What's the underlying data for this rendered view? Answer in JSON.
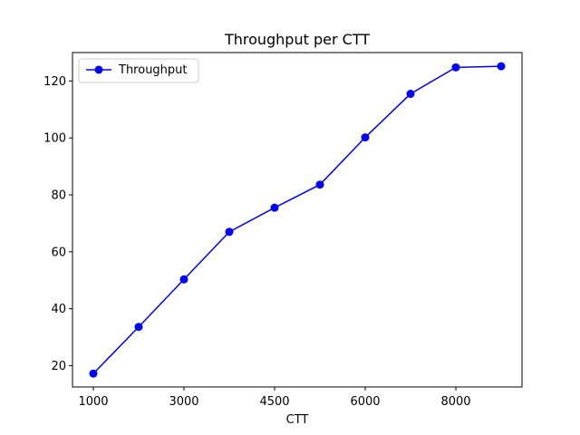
{
  "chart_data": {
    "type": "line",
    "title": "Throughput per CTT",
    "xlabel": "CTT",
    "ylabel": "",
    "x_tick_labels": [
      "1000",
      "3000",
      "4500",
      "6000",
      "8000"
    ],
    "y_ticks": [
      20,
      40,
      60,
      80,
      100,
      120
    ],
    "ylim": [
      12.5,
      130
    ],
    "legend_position": "top-left",
    "grid": false,
    "series": [
      {
        "name": "Throughput",
        "color": "#0000ff",
        "marker": "circle",
        "values": [
          17.2,
          33.6,
          50.3,
          67.0,
          75.5,
          83.6,
          100.2,
          115.5,
          124.8,
          125.2
        ]
      }
    ]
  }
}
